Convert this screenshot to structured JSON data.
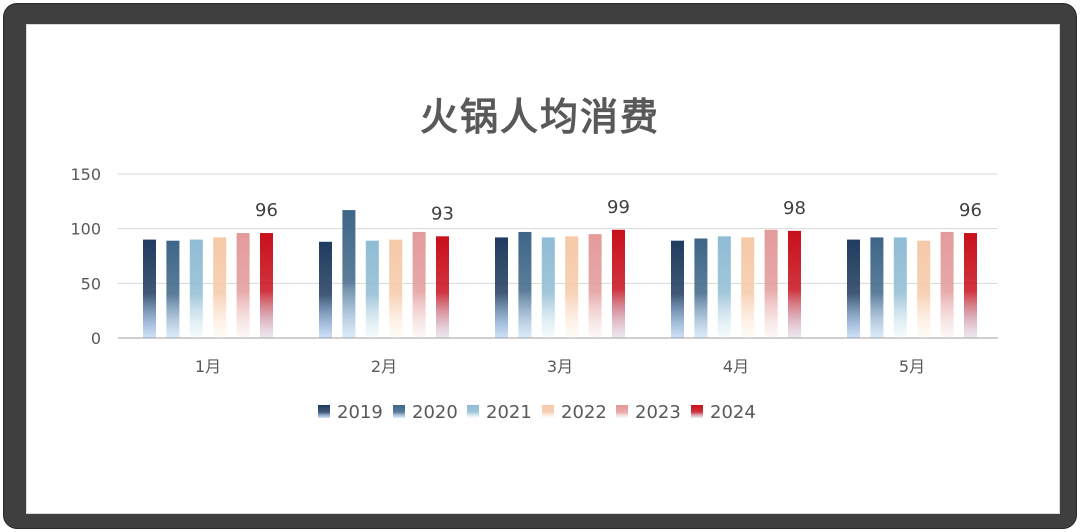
{
  "chart_data": {
    "type": "bar",
    "title": "火锅人均消费",
    "categories": [
      "1月",
      "2月",
      "3月",
      "4月",
      "5月"
    ],
    "series": [
      {
        "name": "2019",
        "values": [
          90,
          88,
          92,
          89,
          90
        ],
        "color_top": "#1f3b5e",
        "color_bottom": "#3f86d8"
      },
      {
        "name": "2020",
        "values": [
          89,
          117,
          97,
          91,
          92
        ],
        "color_top": "#3e6688",
        "color_bottom": "#7fb0e0"
      },
      {
        "name": "2021",
        "values": [
          90,
          89,
          92,
          93,
          92
        ],
        "color_top": "#8fbcd4",
        "color_bottom": "#dcecf5"
      },
      {
        "name": "2022",
        "values": [
          92,
          90,
          93,
          92,
          89
        ],
        "color_top": "#f6c9a8",
        "color_bottom": "#fdeee2"
      },
      {
        "name": "2023",
        "values": [
          96,
          97,
          95,
          99,
          97
        ],
        "color_top": "#e39a9a",
        "color_bottom": "#f6dede"
      },
      {
        "name": "2024",
        "values": [
          96,
          93,
          99,
          98,
          96
        ],
        "color_top": "#c8101b",
        "color_bottom": "#b6a3c2"
      }
    ],
    "data_labels": {
      "series": "2024",
      "values": [
        "96",
        "93",
        "99",
        "98",
        "96"
      ]
    },
    "y_ticks": [
      "150",
      "100",
      "50",
      "0"
    ],
    "ylim": [
      0,
      150
    ],
    "xlabel": "",
    "ylabel": "",
    "grid": true,
    "legend": "bottom"
  }
}
